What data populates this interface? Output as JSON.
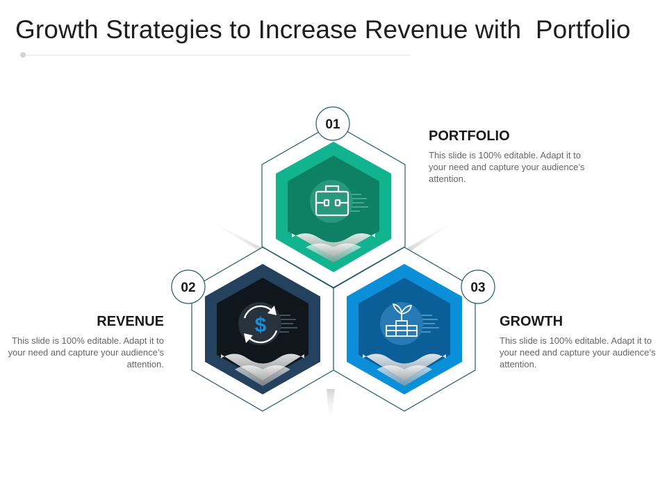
{
  "title": "Growth Strategies to Increase Revenue with  Portfolio",
  "colors": {
    "portfolio_outer": "#12b48f",
    "portfolio_inner": "#0e8063",
    "revenue_outer": "#24425e",
    "revenue_inner": "#0f161c",
    "growth_outer": "#0a8fd8",
    "growth_inner": "#0b5f98",
    "outline": "#1f5a6e"
  },
  "items": [
    {
      "number": "01",
      "heading": "PORTFOLIO",
      "description": "This slide is 100% editable. Adapt it to your need and capture your audience’s attention.",
      "icon": "briefcase-icon"
    },
    {
      "number": "02",
      "heading": "REVENUE",
      "description": "This slide is 100% editable. Adapt it to your need and capture your audience’s attention.",
      "icon": "dollar-cycle-icon"
    },
    {
      "number": "03",
      "heading": "GROWTH",
      "description": "This slide is 100% editable. Adapt it to your need and capture your audience’s attention.",
      "icon": "plant-growth-icon"
    }
  ]
}
